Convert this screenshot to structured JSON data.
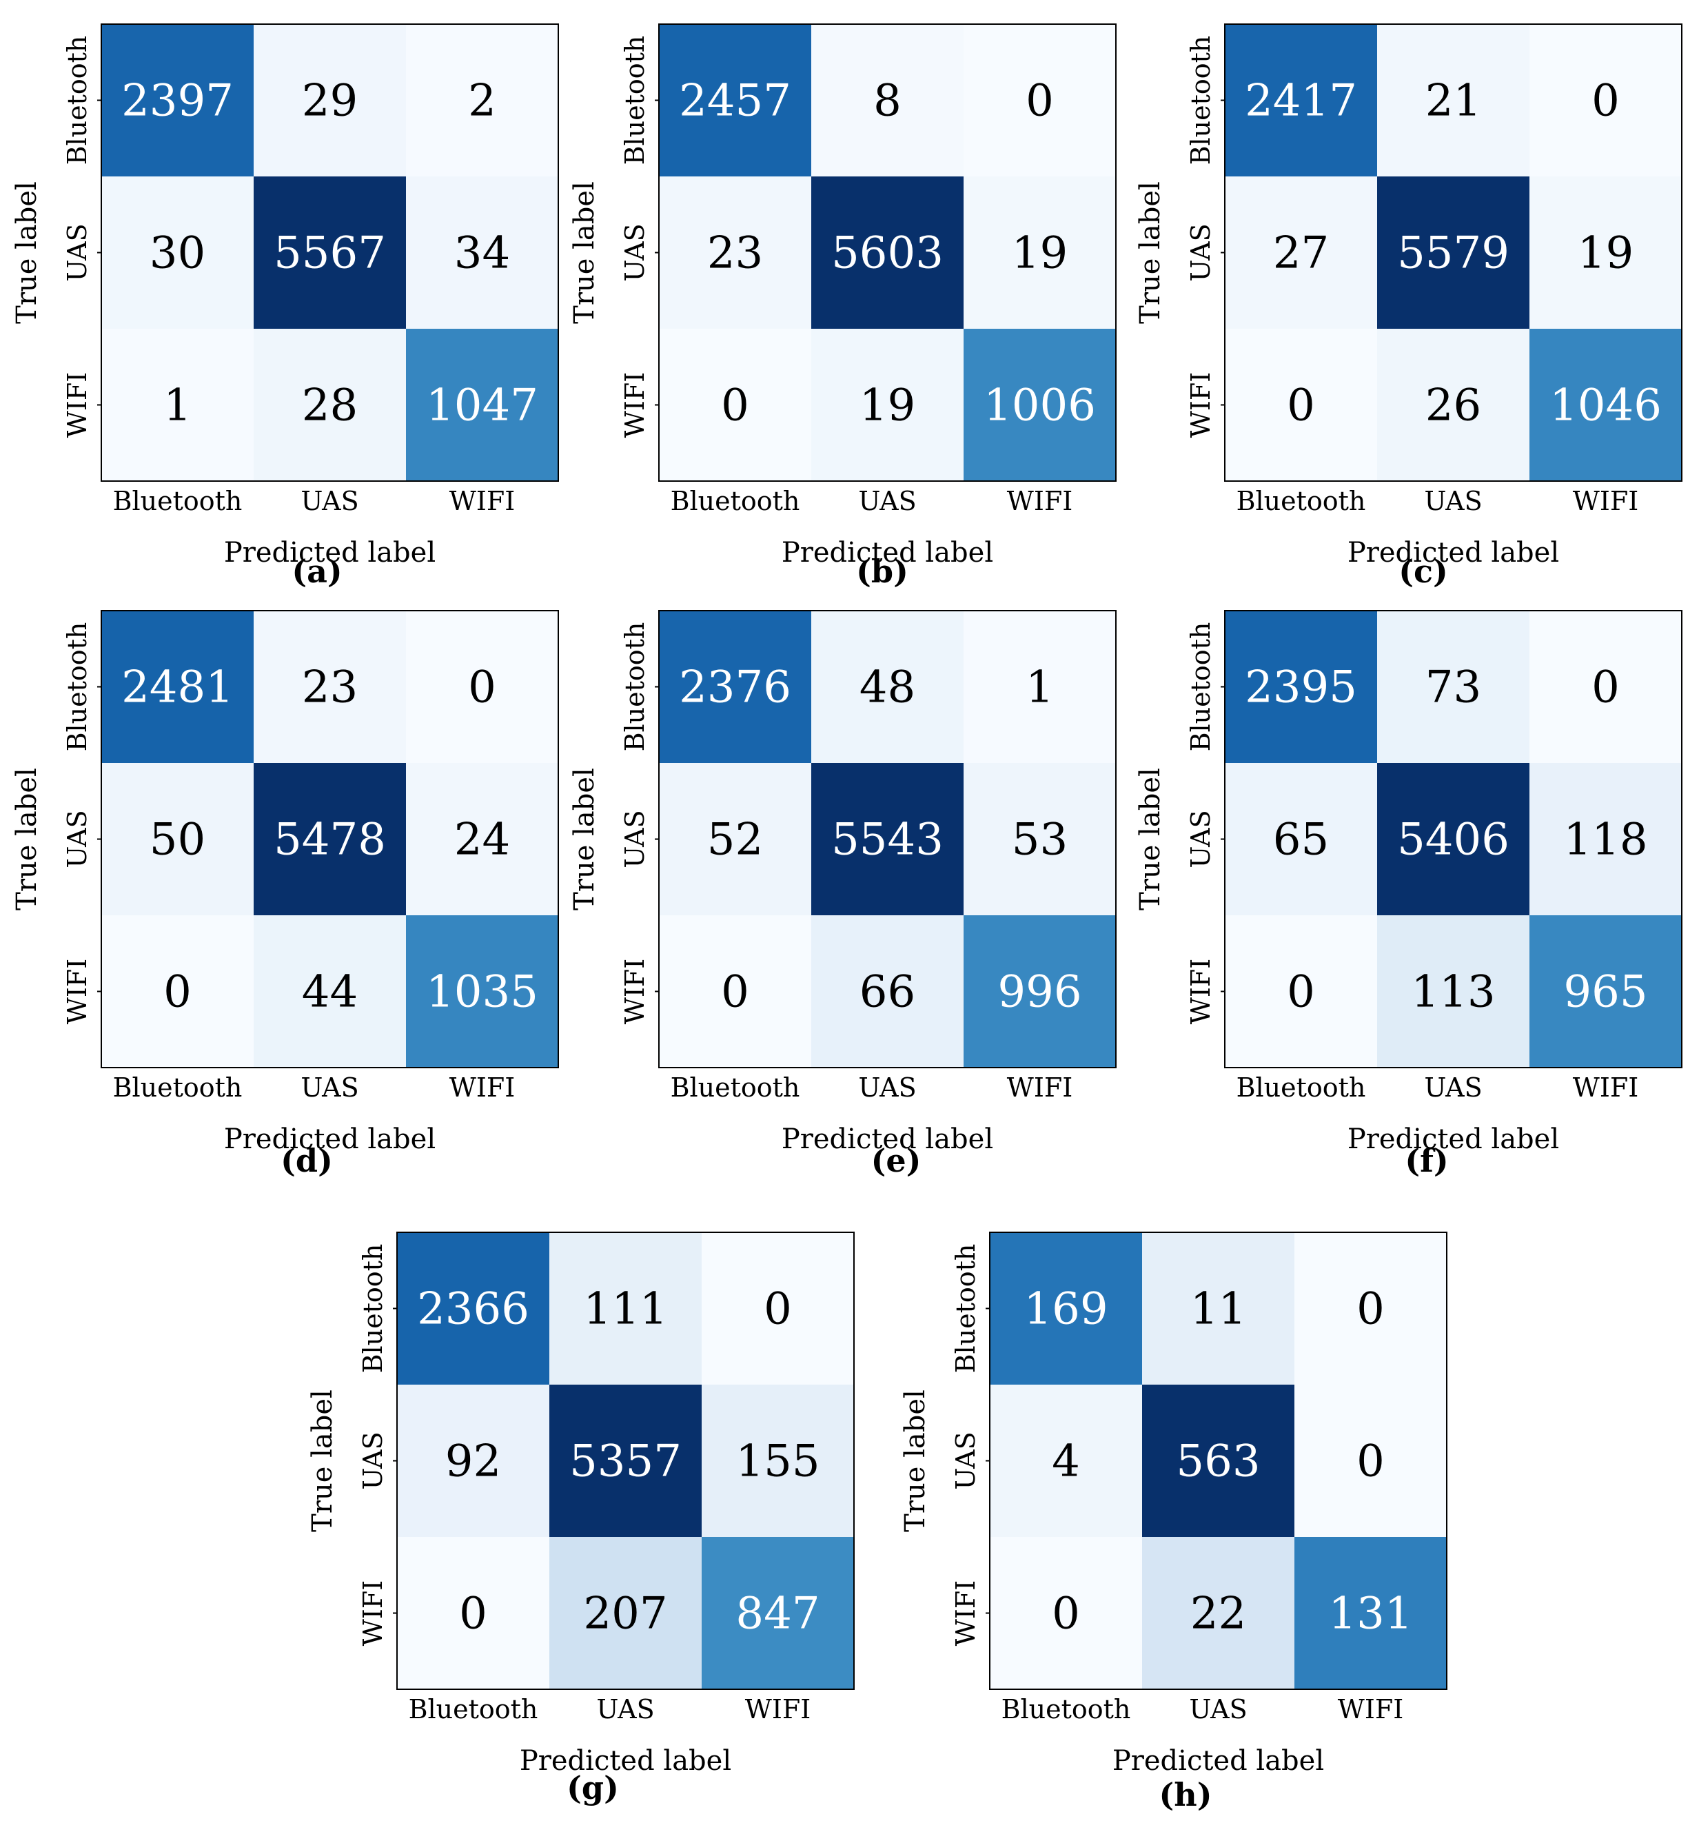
{
  "chart_data": [
    {
      "type": "heatmap",
      "panel_label": "(a)",
      "xlabel": "Predicted label",
      "ylabel": "True label",
      "x_categories": [
        "Bluetooth",
        "UAS",
        "WIFI"
      ],
      "y_categories": [
        "Bluetooth",
        "UAS",
        "WIFI"
      ],
      "matrix": [
        [
          2397,
          29,
          2
        ],
        [
          30,
          5567,
          34
        ],
        [
          1,
          28,
          1047
        ]
      ]
    },
    {
      "type": "heatmap",
      "panel_label": "(b)",
      "xlabel": "Predicted label",
      "ylabel": "True label",
      "x_categories": [
        "Bluetooth",
        "UAS",
        "WIFI"
      ],
      "y_categories": [
        "Bluetooth",
        "UAS",
        "WIFI"
      ],
      "matrix": [
        [
          2457,
          8,
          0
        ],
        [
          23,
          5603,
          19
        ],
        [
          0,
          19,
          1006
        ]
      ]
    },
    {
      "type": "heatmap",
      "panel_label": "(c)",
      "xlabel": "Predicted label",
      "ylabel": "True label",
      "x_categories": [
        "Bluetooth",
        "UAS",
        "WIFI"
      ],
      "y_categories": [
        "Bluetooth",
        "UAS",
        "WIFI"
      ],
      "matrix": [
        [
          2417,
          21,
          0
        ],
        [
          27,
          5579,
          19
        ],
        [
          0,
          26,
          1046
        ]
      ]
    },
    {
      "type": "heatmap",
      "panel_label": "(d)",
      "xlabel": "Predicted label",
      "ylabel": "True label",
      "x_categories": [
        "Bluetooth",
        "UAS",
        "WIFI"
      ],
      "y_categories": [
        "Bluetooth",
        "UAS",
        "WIFI"
      ],
      "matrix": [
        [
          2481,
          23,
          0
        ],
        [
          50,
          5478,
          24
        ],
        [
          0,
          44,
          1035
        ]
      ]
    },
    {
      "type": "heatmap",
      "panel_label": "(e)",
      "xlabel": "Predicted label",
      "ylabel": "True label",
      "x_categories": [
        "Bluetooth",
        "UAS",
        "WIFI"
      ],
      "y_categories": [
        "Bluetooth",
        "UAS",
        "WIFI"
      ],
      "matrix": [
        [
          2376,
          48,
          1
        ],
        [
          52,
          5543,
          53
        ],
        [
          0,
          66,
          996
        ]
      ]
    },
    {
      "type": "heatmap",
      "panel_label": "(f)",
      "xlabel": "Predicted label",
      "ylabel": "True label",
      "x_categories": [
        "Bluetooth",
        "UAS",
        "WIFI"
      ],
      "y_categories": [
        "Bluetooth",
        "UAS",
        "WIFI"
      ],
      "matrix": [
        [
          2395,
          73,
          0
        ],
        [
          65,
          5406,
          118
        ],
        [
          0,
          113,
          965
        ]
      ]
    },
    {
      "type": "heatmap",
      "panel_label": "(g)",
      "xlabel": "Predicted label",
      "ylabel": "True label",
      "x_categories": [
        "Bluetooth",
        "UAS",
        "WIFI"
      ],
      "y_categories": [
        "Bluetooth",
        "UAS",
        "WIFI"
      ],
      "matrix": [
        [
          2366,
          111,
          0
        ],
        [
          92,
          5357,
          155
        ],
        [
          0,
          207,
          847
        ]
      ]
    },
    {
      "type": "heatmap",
      "panel_label": "(h)",
      "xlabel": "Predicted label",
      "ylabel": "True label",
      "x_categories": [
        "Bluetooth",
        "UAS",
        "WIFI"
      ],
      "y_categories": [
        "Bluetooth",
        "UAS",
        "WIFI"
      ],
      "matrix": [
        [
          169,
          11,
          0
        ],
        [
          4,
          563,
          0
        ],
        [
          0,
          22,
          131
        ]
      ]
    }
  ],
  "colormap": "Blues",
  "colors": {
    "light": "#f7fbff",
    "dark": "#08306b"
  }
}
